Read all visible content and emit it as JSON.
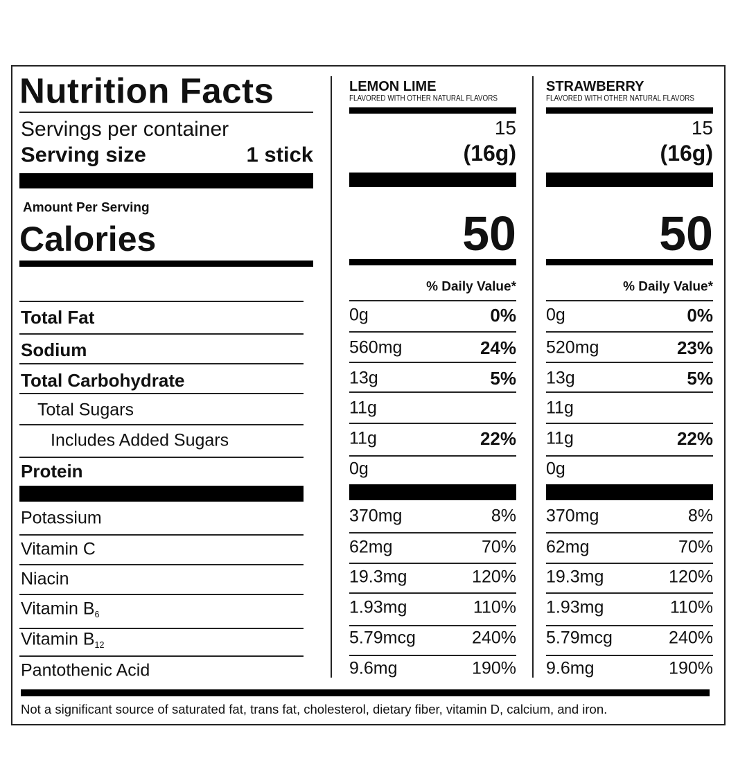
{
  "title": "Nutrition Facts",
  "servings_label": "Servings per container",
  "serving_size_label": "Serving size",
  "serving_size": "1 stick",
  "amount_per_serving": "Amount Per Serving",
  "calories_label": "Calories",
  "nutrients": [
    {
      "label": "Total Fat"
    },
    {
      "label": "Sodium"
    },
    {
      "label": "Total Carbohydrate"
    },
    {
      "label": "Total Sugars"
    },
    {
      "label": "Includes Added Sugars"
    },
    {
      "label": "Protein"
    },
    {
      "label": "Potassium"
    },
    {
      "label": "Vitamin C"
    },
    {
      "label": "Niacin"
    },
    {
      "label": "Vitamin B",
      "subscript": "6"
    },
    {
      "label": "Vitamin B",
      "subscript": "12"
    },
    {
      "label": "Pantothenic Acid"
    }
  ],
  "columns": [
    {
      "name": "LEMON LIME",
      "subtitle": "FLAVORED WITH OTHER NATURAL FLAVORS",
      "servings": "15",
      "serving_size": "(16g)",
      "calories": "50",
      "daily_value_header": "% Daily Value*",
      "rows": [
        [
          "0g",
          "0%"
        ],
        [
          "560mg",
          "24%"
        ],
        [
          "13g",
          "5%"
        ],
        [
          "11g"
        ],
        [
          "11g",
          "22%"
        ],
        [
          "0g"
        ],
        [
          "370mg",
          "8%"
        ],
        [
          "62mg",
          "70%"
        ],
        [
          "19.3mg",
          "120%"
        ],
        [
          "1.93mg",
          "110%"
        ],
        [
          "5.79mcg",
          "240%"
        ],
        [
          "9.6mg",
          "190%"
        ]
      ]
    },
    {
      "name": "STRAWBERRY",
      "subtitle": "FLAVORED WITH OTHER NATURAL FLAVORS",
      "servings": "15",
      "serving_size": "(16g)",
      "calories": "50",
      "daily_value_header": "% Daily Value*",
      "rows": [
        [
          "0g",
          "0%"
        ],
        [
          "520mg",
          "23%"
        ],
        [
          "13g",
          "5%"
        ],
        [
          "11g"
        ],
        [
          "11g",
          "22%"
        ],
        [
          "0g"
        ],
        [
          "370mg",
          "8%"
        ],
        [
          "62mg",
          "70%"
        ],
        [
          "19.3mg",
          "120%"
        ],
        [
          "1.93mg",
          "110%"
        ],
        [
          "5.79mcg",
          "240%"
        ],
        [
          "9.6mg",
          "190%"
        ]
      ]
    }
  ],
  "footnote": "Not a significant source of saturated fat, trans fat, cholesterol, dietary fiber, vitamin D, calcium, and iron."
}
